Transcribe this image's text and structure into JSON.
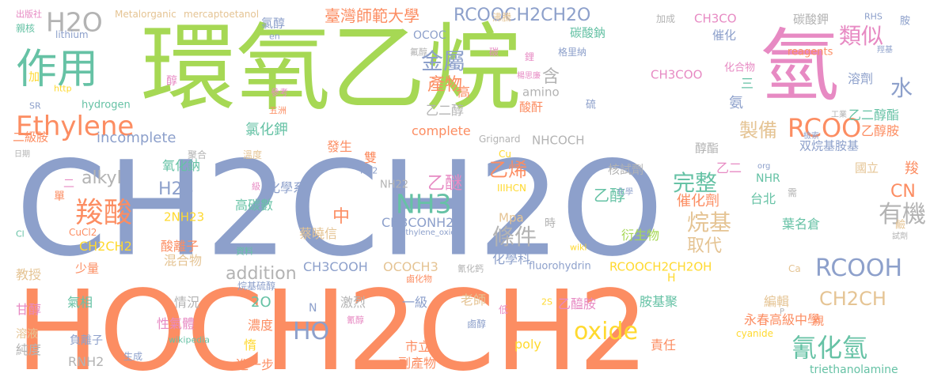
{
  "palette": {
    "blue": "#8da0cb",
    "orange": "#fc8d62",
    "green": "#a6d854",
    "teal": "#66c2a5",
    "pink": "#e78ac3",
    "yellow": "#ffd92f",
    "tan": "#e5c494",
    "gray": "#b3b3b3"
  },
  "words": [
    {
      "text": "CH2CH2O",
      "color": "#8da0cb"
    },
    {
      "text": "HOCH2CH2",
      "color": "#fc8d62"
    },
    {
      "text": "環氧乙烷",
      "color": "#a6d854"
    },
    {
      "text": "氫",
      "color": "#e78ac3"
    },
    {
      "text": "作用",
      "color": "#66c2a5"
    },
    {
      "text": "Ethylene",
      "color": "#fc8d62"
    },
    {
      "text": "H2O",
      "color": "#b3b3b3"
    },
    {
      "text": "臺灣師範大學",
      "color": "#fc8d62"
    },
    {
      "text": "RCOOCH2CH2O",
      "color": "#8da0cb"
    },
    {
      "text": "金屬",
      "color": "#8da0cb"
    },
    {
      "text": "類似",
      "color": "#e78ac3"
    },
    {
      "text": "水",
      "color": "#8da0cb"
    },
    {
      "text": "RCOO",
      "color": "#fc8d62"
    },
    {
      "text": "羧酸",
      "color": "#fc8d62"
    },
    {
      "text": "NH3",
      "color": "#66c2a5"
    },
    {
      "text": "有機",
      "color": "#b3b3b3"
    },
    {
      "text": "條件",
      "color": "#b3b3b3"
    },
    {
      "text": "完整",
      "color": "#66c2a5"
    },
    {
      "text": "HO",
      "color": "#8da0cb"
    },
    {
      "text": "oxide",
      "color": "#ffd92f"
    },
    {
      "text": "氰化氫",
      "color": "#66c2a5"
    },
    {
      "text": "RCOOH",
      "color": "#8da0cb"
    },
    {
      "text": "CH2CH",
      "color": "#e5c494"
    },
    {
      "text": "alkyl",
      "color": "#b3b3b3"
    },
    {
      "text": "烷基",
      "color": "#e5c494"
    },
    {
      "text": "乙烯",
      "color": "#fc8d62"
    },
    {
      "text": "製備",
      "color": "#e5c494"
    },
    {
      "text": "H2S",
      "color": "#8da0cb"
    },
    {
      "text": "addition",
      "color": "#b3b3b3"
    },
    {
      "text": "CN",
      "color": "#fc8d62"
    },
    {
      "text": "乙醚",
      "color": "#e78ac3"
    },
    {
      "text": "產物",
      "color": "#fc8d62"
    },
    {
      "text": "氯化鉀",
      "color": "#66c2a5"
    },
    {
      "text": "incomplete",
      "color": "#8da0cb"
    },
    {
      "text": "含",
      "color": "#b3b3b3"
    },
    {
      "text": "取代",
      "color": "#e5c494"
    },
    {
      "text": "Metalorganic",
      "color": "#e5c494"
    },
    {
      "text": "mercaptoetanol",
      "color": "#e5c494"
    },
    {
      "text": "氯醇",
      "color": "#8da0cb"
    },
    {
      "text": "CH3CO",
      "color": "#e78ac3"
    },
    {
      "text": "碳酸鉀",
      "color": "#b3b3b3"
    },
    {
      "text": "碳酸鈉",
      "color": "#66c2a5"
    },
    {
      "text": "催化",
      "color": "#8da0cb"
    },
    {
      "text": "CH3COO",
      "color": "#e78ac3"
    },
    {
      "text": "乙二醇酯",
      "color": "#66c2a5"
    },
    {
      "text": "乙醇胺",
      "color": "#fc8d62"
    },
    {
      "text": "溶劑",
      "color": "#8da0cb"
    },
    {
      "text": "complete",
      "color": "#fc8d62"
    },
    {
      "text": "乙二醇",
      "color": "#b3b3b3"
    },
    {
      "text": "酸酐",
      "color": "#fc8d62"
    },
    {
      "text": "NHCOCH",
      "color": "#b3b3b3"
    },
    {
      "text": "氧化鈉",
      "color": "#66c2a5"
    },
    {
      "text": "化學系",
      "color": "#8da0cb"
    },
    {
      "text": "核試劑",
      "color": "#b3b3b3"
    },
    {
      "text": "乙醇",
      "color": "#66c2a5"
    },
    {
      "text": "催化劑",
      "color": "#fc8d62"
    },
    {
      "text": "台北",
      "color": "#66c2a5"
    },
    {
      "text": "葉名倉",
      "color": "#66c2a5"
    },
    {
      "text": "國立",
      "color": "#e5c494"
    },
    {
      "text": "双烷基胺基",
      "color": "#8da0cb"
    },
    {
      "text": "醇酯",
      "color": "#b3b3b3"
    },
    {
      "text": "衍生物",
      "color": "#a6d854"
    },
    {
      "text": "高碳數",
      "color": "#66c2a5"
    },
    {
      "text": "蔡曉信",
      "color": "#e5c494"
    },
    {
      "text": "CH3CONH2",
      "color": "#8da0cb"
    },
    {
      "text": "中",
      "color": "#fc8d62"
    },
    {
      "text": "酸離子",
      "color": "#fc8d62"
    },
    {
      "text": "混合物",
      "color": "#e5c494"
    },
    {
      "text": "化學科",
      "color": "#8da0cb"
    },
    {
      "text": "RCOOCH2CH2OH",
      "color": "#ffd92f"
    },
    {
      "text": "CH3COOH",
      "color": "#8da0cb"
    },
    {
      "text": "OCOCH3",
      "color": "#e5c494"
    },
    {
      "text": "CH2CH2",
      "color": "#ffd92f"
    },
    {
      "text": "教授",
      "color": "#e5c494"
    },
    {
      "text": "少量",
      "color": "#fc8d62"
    },
    {
      "text": "氣相",
      "color": "#66c2a5"
    },
    {
      "text": "情況",
      "color": "#b3b3b3"
    },
    {
      "text": "性氣體",
      "color": "#e78ac3"
    },
    {
      "text": "2O",
      "color": "#66c2a5"
    },
    {
      "text": "激烈",
      "color": "#b3b3b3"
    },
    {
      "text": "一級",
      "color": "#8da0cb"
    },
    {
      "text": "老師",
      "color": "#e5c494"
    },
    {
      "text": "乙醯胺",
      "color": "#e78ac3"
    },
    {
      "text": "胺基聚",
      "color": "#66c2a5"
    },
    {
      "text": "編輯",
      "color": "#e5c494"
    },
    {
      "text": "永春高級中學",
      "color": "#fc8d62"
    },
    {
      "text": "濃度",
      "color": "#fc8d62"
    },
    {
      "text": "市立",
      "color": "#fc8d62"
    },
    {
      "text": "副產物",
      "color": "#fc8d62"
    },
    {
      "text": "責任",
      "color": "#fc8d62"
    },
    {
      "text": "進一步",
      "color": "#fc8d62"
    },
    {
      "text": "triethanolamine",
      "color": "#66c2a5"
    },
    {
      "text": "純度",
      "color": "#b3b3b3"
    },
    {
      "text": "RNH2",
      "color": "#b3b3b3"
    },
    {
      "text": "poly",
      "color": "#ffd92f"
    },
    {
      "text": "2NH23",
      "color": "#ffd92f"
    },
    {
      "text": "Mpa",
      "color": "#e5c494"
    },
    {
      "text": "fluorohydrin",
      "color": "#8da0cb"
    },
    {
      "text": "NHR",
      "color": "#66c2a5"
    },
    {
      "text": "amino",
      "color": "#b3b3b3"
    },
    {
      "text": "NH22",
      "color": "#b3b3b3"
    },
    {
      "text": "IIIHCN",
      "color": "#ffd92f"
    },
    {
      "text": "hydrogen",
      "color": "#66c2a5"
    },
    {
      "text": "lithium",
      "color": "#8da0cb"
    },
    {
      "text": "OCOC",
      "color": "#8da0cb"
    },
    {
      "text": "reagents",
      "color": "#fc8d62"
    },
    {
      "text": "Grignard",
      "color": "#b3b3b3"
    },
    {
      "text": "Ethylene_oxide",
      "color": "#8da0cb"
    },
    {
      "text": "wiki",
      "color": "#ffd92f"
    },
    {
      "text": "wikipedia",
      "color": "#66c2a5"
    },
    {
      "text": "cyanide",
      "color": "#ffd92f"
    },
    {
      "text": "二級胺",
      "color": "#fc8d62"
    },
    {
      "text": "發生",
      "color": "#fc8d62"
    },
    {
      "text": "雙",
      "color": "#fc8d62"
    },
    {
      "text": "高",
      "color": "#fc8d62"
    },
    {
      "text": "三",
      "color": "#66c2a5"
    },
    {
      "text": "氨",
      "color": "#8da0cb"
    },
    {
      "text": "乙二",
      "color": "#e78ac3"
    },
    {
      "text": "羧",
      "color": "#fc8d62"
    },
    {
      "text": "甘醇",
      "color": "#e78ac3"
    },
    {
      "text": "溶液",
      "color": "#e5c494"
    },
    {
      "text": "負離子",
      "color": "#8da0cb"
    },
    {
      "text": "生成",
      "color": "#8da0cb"
    },
    {
      "text": "醇",
      "color": "#e78ac3"
    },
    {
      "text": "加",
      "color": "#ffd92f"
    },
    {
      "text": "親",
      "color": "#fc8d62"
    },
    {
      "text": "惰",
      "color": "#ffd92f"
    },
    {
      "text": "時",
      "color": "#b3b3b3"
    },
    {
      "text": "單",
      "color": "#fc8d62"
    },
    {
      "text": "二",
      "color": "#e78ac3"
    },
    {
      "text": "硫",
      "color": "#8da0cb"
    },
    {
      "text": "鹼",
      "color": "#e5c494"
    },
    {
      "text": "化合物",
      "color": "#e78ac3"
    },
    {
      "text": "加成",
      "color": "#b3b3b3"
    },
    {
      "text": "沸騰",
      "color": "#e5c494"
    },
    {
      "text": "出版社",
      "color": "#e78ac3"
    },
    {
      "text": "親核",
      "color": "#66c2a5"
    },
    {
      "text": "胺",
      "color": "#8da0cb"
    },
    {
      "text": "RHS",
      "color": "#8da0cb"
    },
    {
      "text": "格里納",
      "color": "#8da0cb"
    },
    {
      "text": "碳",
      "color": "#e78ac3"
    },
    {
      "text": "鋰",
      "color": "#e78ac3"
    },
    {
      "text": "氟醇",
      "color": "#b3b3b3"
    },
    {
      "text": "en",
      "color": "#8da0cb"
    },
    {
      "text": "SR",
      "color": "#8da0cb"
    },
    {
      "text": "http",
      "color": "#ffd92f"
    },
    {
      "text": "參考",
      "color": "#e78ac3"
    },
    {
      "text": "五洲",
      "color": "#fc8d62"
    },
    {
      "text": "工業",
      "color": "#b3b3b3"
    },
    {
      "text": "檢索",
      "color": "#8da0cb"
    },
    {
      "text": "聚合",
      "color": "#b3b3b3"
    },
    {
      "text": "溫度",
      "color": "#e5c494"
    },
    {
      "text": "日期",
      "color": "#b3b3b3"
    },
    {
      "text": "HS2",
      "color": "#8da0cb"
    },
    {
      "text": "級",
      "color": "#e78ac3"
    },
    {
      "text": "Cu",
      "color": "#ffd92f"
    },
    {
      "text": "org",
      "color": "#8da0cb"
    },
    {
      "text": "需",
      "color": "#b3b3b3"
    },
    {
      "text": "化學",
      "color": "#8da0cb"
    },
    {
      "text": "Cl",
      "color": "#66c2a5"
    },
    {
      "text": "CuCl2",
      "color": "#fc8d62"
    },
    {
      "text": "試劑",
      "color": "#b3b3b3"
    },
    {
      "text": "資料",
      "color": "#66c2a5"
    },
    {
      "text": "烷基硫醇",
      "color": "#8da0cb"
    },
    {
      "text": "鹵化物",
      "color": "#fc8d62"
    },
    {
      "text": "氰化鈣",
      "color": "#b3b3b3"
    },
    {
      "text": "H",
      "color": "#ffd92f"
    },
    {
      "text": "Ca",
      "color": "#e5c494"
    },
    {
      "text": "N",
      "color": "#8da0cb"
    },
    {
      "text": "氰醇",
      "color": "#e78ac3"
    },
    {
      "text": "低",
      "color": "#e78ac3"
    },
    {
      "text": "2S",
      "color": "#ffd92f"
    },
    {
      "text": "鹵醇",
      "color": "#8da0cb"
    },
    {
      "text": "P",
      "color": "#b3b3b3"
    },
    {
      "text": "羥基",
      "color": "#8da0cb"
    },
    {
      "text": "楊思廉",
      "color": "#e78ac3"
    }
  ]
}
